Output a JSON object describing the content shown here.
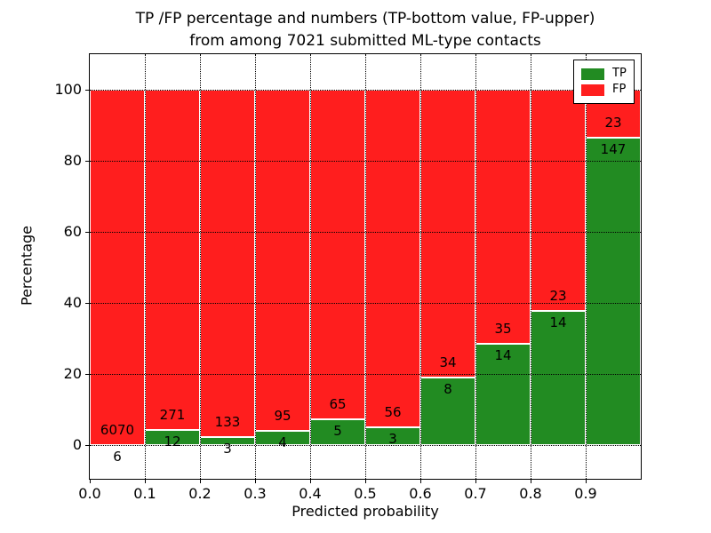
{
  "header": {
    "title_line1": "TP /FP percentage and numbers (TP-bottom value, FP-upper)",
    "title_line2": "from among 7021 submitted ML-type contacts"
  },
  "chart_data": {
    "type": "bar",
    "stacked": true,
    "unit": "percent",
    "title": "TP /FP percentage and numbers (TP-bottom value, FP-upper) from among 7021 submitted ML-type contacts",
    "xlabel": "Predicted probability",
    "ylabel": "Percentage",
    "total_contacts": 7021,
    "categories": [
      "0.0-0.1",
      "0.1-0.2",
      "0.2-0.3",
      "0.3-0.4",
      "0.4-0.5",
      "0.5-0.6",
      "0.6-0.7",
      "0.7-0.8",
      "0.8-0.9",
      "0.9-1.0"
    ],
    "series": [
      {
        "name": "TP",
        "color": "#228b22",
        "counts": [
          6,
          12,
          3,
          4,
          5,
          3,
          8,
          14,
          14,
          147
        ]
      },
      {
        "name": "FP",
        "color": "#ff1e1e",
        "counts": [
          6070,
          271,
          133,
          95,
          65,
          56,
          34,
          35,
          23,
          23
        ]
      }
    ],
    "tp_percent": [
      0.1,
      4.24,
      2.21,
      4.04,
      7.14,
      5.08,
      19.05,
      28.57,
      37.84,
      86.47
    ],
    "xticks": [
      "0.0",
      "0.1",
      "0.2",
      "0.3",
      "0.4",
      "0.5",
      "0.6",
      "0.7",
      "0.8",
      "0.9"
    ],
    "yticks": [
      "0",
      "20",
      "40",
      "60",
      "80",
      "100"
    ],
    "xlim": [
      0.0,
      1.0
    ],
    "ylim": [
      -9.5,
      110
    ],
    "grid": "dotted",
    "legend_position": "upper right"
  }
}
